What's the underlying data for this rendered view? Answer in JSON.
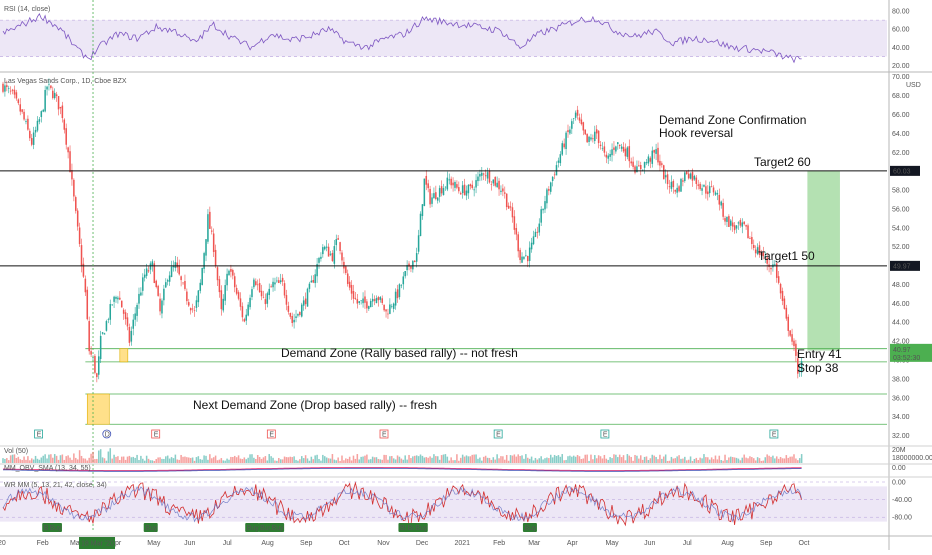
{
  "chart_data": {
    "type": "candlestick",
    "symbol_label": "Las Vegas Sands Corp., 1D, Cboe BZX",
    "currency": "USD",
    "price_axis": {
      "ylim": [
        31,
        70.5
      ],
      "ticks": [
        "70.00",
        "68.00",
        "66.00",
        "64.00",
        "62.00",
        "60.00",
        "58.00",
        "56.00",
        "54.00",
        "52.00",
        "50.00",
        "48.00",
        "46.00",
        "44.00",
        "42.00",
        "40.00",
        "38.00",
        "36.00",
        "34.00",
        "32.00"
      ]
    },
    "x_ticks": [
      {
        "label": "20",
        "i": 0
      },
      {
        "label": "Feb",
        "i": 22
      },
      {
        "label": "Mar",
        "i": 41
      },
      {
        "label": "Apr",
        "i": 64
      },
      {
        "label": "May",
        "i": 85
      },
      {
        "label": "Jun",
        "i": 106
      },
      {
        "label": "Jul",
        "i": 128
      },
      {
        "label": "Aug",
        "i": 150
      },
      {
        "label": "Sep",
        "i": 172
      },
      {
        "label": "Oct",
        "i": 194
      },
      {
        "label": "Nov",
        "i": 216
      },
      {
        "label": "Dec",
        "i": 238
      },
      {
        "label": "2021",
        "i": 260
      },
      {
        "label": "Feb",
        "i": 282
      },
      {
        "label": "Mar",
        "i": 302
      },
      {
        "label": "Apr",
        "i": 324
      },
      {
        "label": "May",
        "i": 346
      },
      {
        "label": "Jun",
        "i": 368
      },
      {
        "label": "Jul",
        "i": 390
      },
      {
        "label": "Aug",
        "i": 412
      },
      {
        "label": "Sep",
        "i": 434
      },
      {
        "label": "Oct",
        "i": 456
      }
    ],
    "crosshair_date_label": "18 Mar '20",
    "price_waypoints": [
      [
        0,
        69
      ],
      [
        5,
        68
      ],
      [
        10,
        66
      ],
      [
        15,
        63
      ],
      [
        20,
        66
      ],
      [
        23,
        69
      ],
      [
        27,
        68
      ],
      [
        31,
        66
      ],
      [
        34,
        62
      ],
      [
        37,
        57
      ],
      [
        40,
        52
      ],
      [
        43,
        47
      ],
      [
        45,
        41
      ],
      [
        47,
        40
      ],
      [
        49,
        38
      ],
      [
        51,
        42
      ],
      [
        54,
        44
      ],
      [
        57,
        46
      ],
      [
        60,
        47
      ],
      [
        63,
        45
      ],
      [
        66,
        42
      ],
      [
        70,
        46
      ],
      [
        74,
        49
      ],
      [
        78,
        50
      ],
      [
        82,
        45
      ],
      [
        86,
        49
      ],
      [
        90,
        50
      ],
      [
        95,
        47
      ],
      [
        100,
        45
      ],
      [
        103,
        48
      ],
      [
        107,
        55
      ],
      [
        110,
        52
      ],
      [
        114,
        45
      ],
      [
        118,
        50
      ],
      [
        122,
        47
      ],
      [
        126,
        44
      ],
      [
        131,
        49
      ],
      [
        136,
        46
      ],
      [
        141,
        48
      ],
      [
        146,
        48
      ],
      [
        151,
        44
      ],
      [
        157,
        46
      ],
      [
        161,
        48
      ],
      [
        167,
        52
      ],
      [
        172,
        51
      ],
      [
        175,
        53
      ],
      [
        180,
        48
      ],
      [
        185,
        46
      ],
      [
        190,
        46
      ],
      [
        195,
        47
      ],
      [
        200,
        45
      ],
      [
        206,
        47
      ],
      [
        212,
        50
      ],
      [
        216,
        51
      ],
      [
        220,
        59
      ],
      [
        223,
        57
      ],
      [
        228,
        58
      ],
      [
        233,
        59
      ],
      [
        238,
        58
      ],
      [
        244,
        58
      ],
      [
        251,
        60
      ],
      [
        256,
        59
      ],
      [
        261,
        58
      ],
      [
        266,
        55
      ],
      [
        270,
        51
      ],
      [
        274,
        51
      ],
      [
        278,
        53
      ],
      [
        283,
        57
      ],
      [
        288,
        60
      ],
      [
        293,
        63
      ],
      [
        299,
        66
      ],
      [
        305,
        63
      ],
      [
        310,
        64
      ],
      [
        315,
        61
      ],
      [
        320,
        63
      ],
      [
        326,
        62
      ],
      [
        331,
        60
      ],
      [
        336,
        61
      ],
      [
        341,
        62
      ],
      [
        346,
        59
      ],
      [
        352,
        58
      ],
      [
        357,
        60
      ],
      [
        362,
        59
      ],
      [
        367,
        58
      ],
      [
        372,
        58
      ],
      [
        377,
        55
      ],
      [
        382,
        54
      ],
      [
        387,
        54
      ],
      [
        392,
        52
      ],
      [
        397,
        51
      ],
      [
        400,
        50
      ],
      [
        403,
        50
      ],
      [
        405,
        48
      ],
      [
        407,
        46
      ],
      [
        409,
        44
      ],
      [
        411,
        43
      ],
      [
        413,
        41
      ],
      [
        415,
        39
      ],
      [
        417,
        39.5
      ]
    ],
    "horizontal_levels": [
      {
        "name": "Target2",
        "value": 60.03,
        "label": "60.03",
        "color": "#111111"
      },
      {
        "name": "Target1",
        "value": 49.97,
        "label": "49.97",
        "color": "#111111"
      }
    ],
    "zones": [
      {
        "name": "demand-zone-rally",
        "from": 39.8,
        "to": 41.2,
        "color": "#4caf50",
        "box_color": "#ffe08a"
      },
      {
        "name": "next-demand-zone-drop",
        "from": 33.2,
        "to": 36.4,
        "color": "#4caf50",
        "box_color": "#ffe08a"
      }
    ],
    "target_band": {
      "from": 41,
      "to": 60
    },
    "right_labels": {
      "last_price": "40.97",
      "countdown": "03:52:30"
    },
    "annotations": {
      "confirmation_1": "Demand Zone Confirmation",
      "confirmation_2": "Hook reversal",
      "target2": "Target2  60",
      "target1": "Target1  50",
      "entry": "Entry  41",
      "stop": "Stop  38",
      "demand_zone": "Demand Zone  (Rally based rally) -- not fresh",
      "next_demand_zone": "Next Demand Zone  (Drop based rally) -- fresh"
    },
    "earnings_markers": [
      {
        "letter": "E",
        "i": 24
      },
      {
        "letter": "D",
        "i": 70
      },
      {
        "letter": "E",
        "i": 103
      },
      {
        "letter": "E",
        "i": 181
      },
      {
        "letter": "E",
        "i": 257
      },
      {
        "letter": "E",
        "i": 334
      },
      {
        "letter": "E",
        "i": 406
      },
      {
        "letter": "E",
        "i": 520
      }
    ],
    "rsi": {
      "label": "RSI (14, close)",
      "ylim": [
        15,
        90
      ],
      "ticks": [
        "80.00",
        "60.00",
        "40.00",
        "20.00"
      ],
      "band": [
        30,
        70
      ],
      "waypoints": [
        [
          0,
          55
        ],
        [
          10,
          65
        ],
        [
          20,
          75
        ],
        [
          30,
          60
        ],
        [
          40,
          35
        ],
        [
          45,
          28
        ],
        [
          50,
          40
        ],
        [
          60,
          55
        ],
        [
          70,
          50
        ],
        [
          80,
          62
        ],
        [
          90,
          58
        ],
        [
          100,
          45
        ],
        [
          110,
          65
        ],
        [
          120,
          50
        ],
        [
          130,
          40
        ],
        [
          140,
          55
        ],
        [
          150,
          48
        ],
        [
          160,
          52
        ],
        [
          170,
          60
        ],
        [
          180,
          45
        ],
        [
          190,
          40
        ],
        [
          200,
          50
        ],
        [
          210,
          55
        ],
        [
          220,
          72
        ],
        [
          230,
          68
        ],
        [
          240,
          65
        ],
        [
          250,
          62
        ],
        [
          260,
          58
        ],
        [
          270,
          40
        ],
        [
          280,
          55
        ],
        [
          290,
          62
        ],
        [
          300,
          70
        ],
        [
          310,
          72
        ],
        [
          320,
          58
        ],
        [
          330,
          52
        ],
        [
          340,
          58
        ],
        [
          350,
          45
        ],
        [
          360,
          50
        ],
        [
          370,
          48
        ],
        [
          380,
          40
        ],
        [
          390,
          38
        ],
        [
          400,
          35
        ],
        [
          410,
          28
        ],
        [
          417,
          26
        ]
      ]
    },
    "volume": {
      "label": "Vol (50)",
      "ticks": [
        "20M",
        "18000000.00"
      ]
    },
    "obv": {
      "label": "MM_OBV_SMA (13, 34, 55)",
      "value_label": "0.00"
    },
    "stoch": {
      "label": "WR MM (5, 13, 21, 42, close, 34)",
      "ticks": [
        "0.00",
        "-40.00",
        "-80.00"
      ],
      "buy_label": "Buy",
      "buy_markers": [
        21,
        24,
        74,
        127,
        134,
        140,
        207,
        211,
        215,
        272
      ]
    },
    "last_price": 40.97
  }
}
